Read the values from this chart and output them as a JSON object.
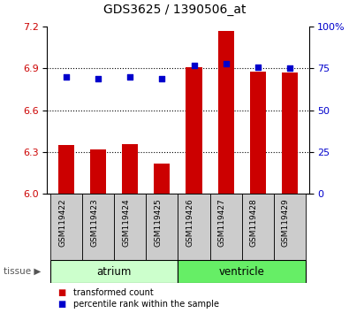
{
  "title": "GDS3625 / 1390506_at",
  "samples": [
    "GSM119422",
    "GSM119423",
    "GSM119424",
    "GSM119425",
    "GSM119426",
    "GSM119427",
    "GSM119428",
    "GSM119429"
  ],
  "bar_values": [
    6.35,
    6.32,
    6.36,
    6.22,
    6.91,
    7.17,
    6.88,
    6.87
  ],
  "bar_base": 6.0,
  "percentile_values": [
    70,
    69,
    70,
    69,
    77,
    78,
    76,
    75
  ],
  "left_ylim": [
    6.0,
    7.2
  ],
  "right_ylim": [
    0,
    100
  ],
  "left_yticks": [
    6.0,
    6.3,
    6.6,
    6.9,
    7.2
  ],
  "right_yticks": [
    0,
    25,
    50,
    75,
    100
  ],
  "right_yticklabels": [
    "0",
    "25",
    "50",
    "75",
    "100%"
  ],
  "bar_color": "#cc0000",
  "dot_color": "#0000cc",
  "atrium_color": "#ccffcc",
  "ventricle_color": "#66ee66",
  "sample_box_color": "#cccccc",
  "legend_bar_label": "transformed count",
  "legend_dot_label": "percentile rank within the sample",
  "tick_label_color_left": "#cc0000",
  "tick_label_color_right": "#0000cc",
  "bar_width": 0.5,
  "xlim": [
    -0.6,
    7.6
  ],
  "grid_yticks": [
    6.3,
    6.6,
    6.9
  ]
}
